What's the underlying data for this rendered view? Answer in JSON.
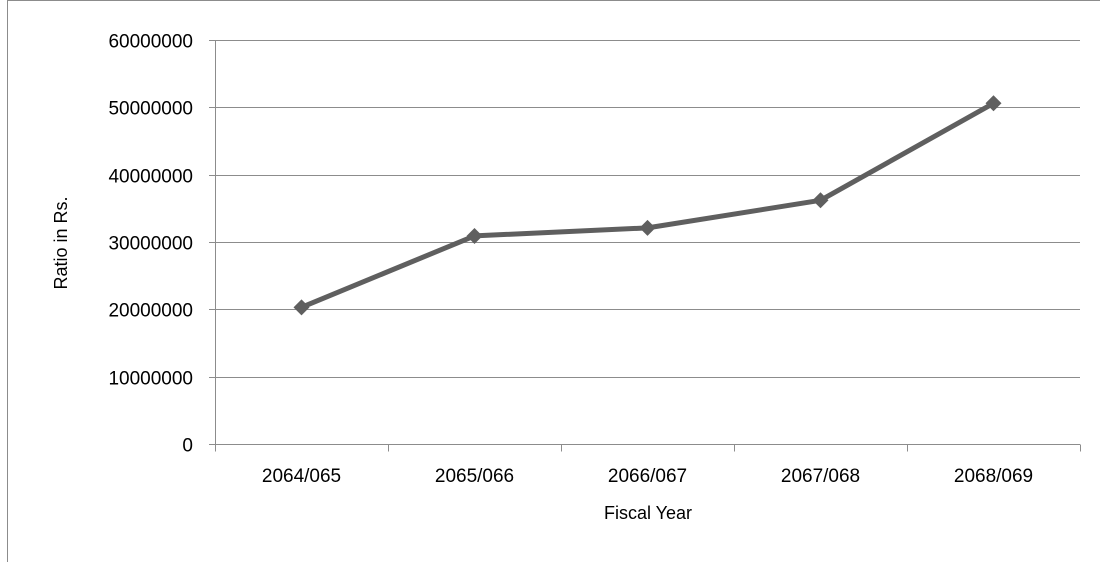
{
  "chart_data": {
    "type": "line",
    "title": "",
    "xlabel": "Fiscal Year",
    "ylabel": "Ratio in Rs.",
    "categories": [
      "2064/065",
      "2065/066",
      "2066/067",
      "2067/068",
      "2068/069"
    ],
    "series": [
      {
        "values": [
          20300000,
          30900000,
          32100000,
          36200000,
          50600000
        ],
        "color": "#5f5f5f",
        "marker": "diamond"
      }
    ],
    "ylim": [
      0,
      60000000
    ],
    "yticks": [
      0,
      10000000,
      20000000,
      30000000,
      40000000,
      50000000,
      60000000
    ],
    "ytick_labels": [
      "0",
      "10000000",
      "20000000",
      "30000000",
      "40000000",
      "50000000",
      "60000000"
    ],
    "grid": "horizontal",
    "legend": "none",
    "colors": {
      "gridline": "#8c8c8c",
      "axis": "#8c8c8c",
      "frame": "#8c8c8c",
      "series": "#5f5f5f"
    }
  }
}
